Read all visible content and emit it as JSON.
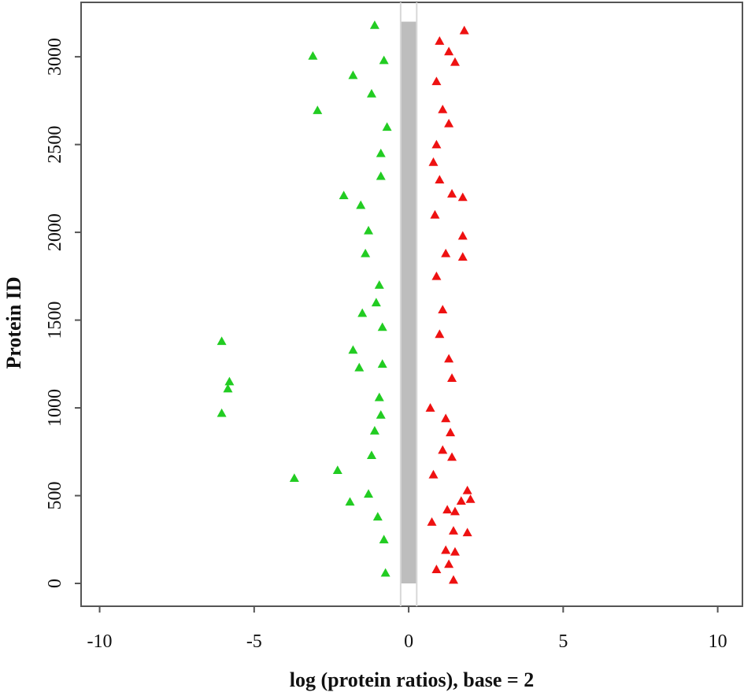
{
  "chart_data": {
    "type": "scatter",
    "xlabel": "log (protein ratios), base = 2",
    "ylabel": "Protein ID",
    "xlim": [
      -10.6,
      10.8
    ],
    "ylim": [
      -130,
      3310
    ],
    "x_ticks": [
      -10,
      -5,
      0,
      5,
      10
    ],
    "x_tick_labels": [
      "-10",
      "-5",
      "0",
      "5",
      "10"
    ],
    "y_ticks": [
      0,
      500,
      1000,
      1500,
      2000,
      2500,
      3000
    ],
    "y_tick_labels": [
      "0",
      "500",
      "1000",
      "1500",
      "2000",
      "2500",
      "3000"
    ],
    "marker": "triangle",
    "grid": false,
    "legend": "none",
    "reference_lines_x": [
      -0.26,
      0.26
    ],
    "series": [
      {
        "color": "#bdbdbd",
        "band": {
          "x_min": -0.26,
          "x_max": 0.26,
          "y_min": 0,
          "y_max": 3200
        }
      },
      {
        "color": "#22cc22",
        "points": [
          [
            -3.1,
            3005
          ],
          [
            -1.8,
            2895
          ],
          [
            -2.95,
            2695
          ],
          [
            -2.1,
            2210
          ],
          [
            -1.55,
            2155
          ],
          [
            -6.05,
            1380
          ],
          [
            -5.8,
            1150
          ],
          [
            -5.85,
            1110
          ],
          [
            -6.05,
            970
          ],
          [
            -3.7,
            600
          ],
          [
            -2.3,
            645
          ],
          [
            -1.9,
            465
          ],
          [
            -1.5,
            1540
          ],
          [
            -1.8,
            1330
          ],
          [
            -1.6,
            1230
          ],
          [
            -1.4,
            1880
          ],
          [
            -1.3,
            2010
          ],
          [
            -1.2,
            2790
          ],
          [
            -1.1,
            3180
          ],
          [
            -1.3,
            510
          ],
          [
            -1.1,
            870
          ],
          [
            -1.2,
            730
          ],
          [
            -1.0,
            380
          ],
          [
            -0.9,
            2450
          ],
          [
            -0.95,
            1700
          ],
          [
            -1.05,
            1600
          ],
          [
            -0.85,
            1250
          ],
          [
            -0.9,
            960
          ],
          [
            -0.8,
            250
          ],
          [
            -0.75,
            60
          ],
          [
            -0.9,
            2320
          ],
          [
            -0.8,
            2980
          ],
          [
            -0.7,
            2600
          ],
          [
            -0.85,
            1460
          ],
          [
            -0.95,
            1060
          ]
        ]
      },
      {
        "color": "#ee1111",
        "points": [
          [
            1.8,
            3150
          ],
          [
            1.3,
            3030
          ],
          [
            1.5,
            2970
          ],
          [
            1.0,
            3090
          ],
          [
            0.9,
            2860
          ],
          [
            1.3,
            2620
          ],
          [
            1.4,
            2220
          ],
          [
            1.75,
            2200
          ],
          [
            1.75,
            1980
          ],
          [
            1.75,
            1860
          ],
          [
            1.2,
            1880
          ],
          [
            1.1,
            1560
          ],
          [
            1.0,
            1420
          ],
          [
            1.3,
            1280
          ],
          [
            1.4,
            1170
          ],
          [
            1.2,
            940
          ],
          [
            1.35,
            860
          ],
          [
            1.1,
            760
          ],
          [
            1.4,
            720
          ],
          [
            1.9,
            530
          ],
          [
            2.0,
            480
          ],
          [
            1.7,
            470
          ],
          [
            1.25,
            420
          ],
          [
            1.5,
            410
          ],
          [
            1.45,
            300
          ],
          [
            1.9,
            290
          ],
          [
            1.2,
            190
          ],
          [
            1.3,
            110
          ],
          [
            1.45,
            20
          ],
          [
            1.5,
            180
          ],
          [
            0.9,
            2500
          ],
          [
            0.8,
            2400
          ],
          [
            0.85,
            2100
          ],
          [
            0.9,
            1750
          ],
          [
            0.7,
            1000
          ],
          [
            0.8,
            620
          ],
          [
            0.75,
            350
          ],
          [
            0.9,
            80
          ],
          [
            1.1,
            2700
          ],
          [
            1.0,
            2300
          ]
        ]
      }
    ]
  }
}
